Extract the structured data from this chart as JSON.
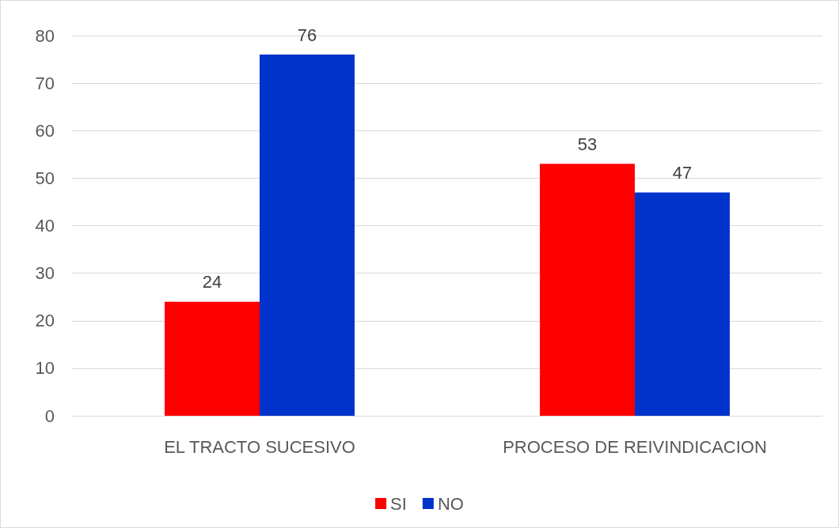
{
  "chart_data": {
    "type": "bar",
    "categories": [
      "EL TRACTO SUCESIVO",
      "PROCESO DE REIVINDICACION"
    ],
    "series": [
      {
        "name": "SI",
        "color": "#ff0000",
        "values": [
          24,
          53
        ]
      },
      {
        "name": "NO",
        "color": "#0033cc",
        "values": [
          76,
          47
        ]
      }
    ],
    "ylim": [
      0,
      80
    ],
    "yticks": [
      0,
      10,
      20,
      30,
      40,
      50,
      60,
      70,
      80
    ],
    "grid": "y",
    "legend": "bottom",
    "data_labels": true
  }
}
